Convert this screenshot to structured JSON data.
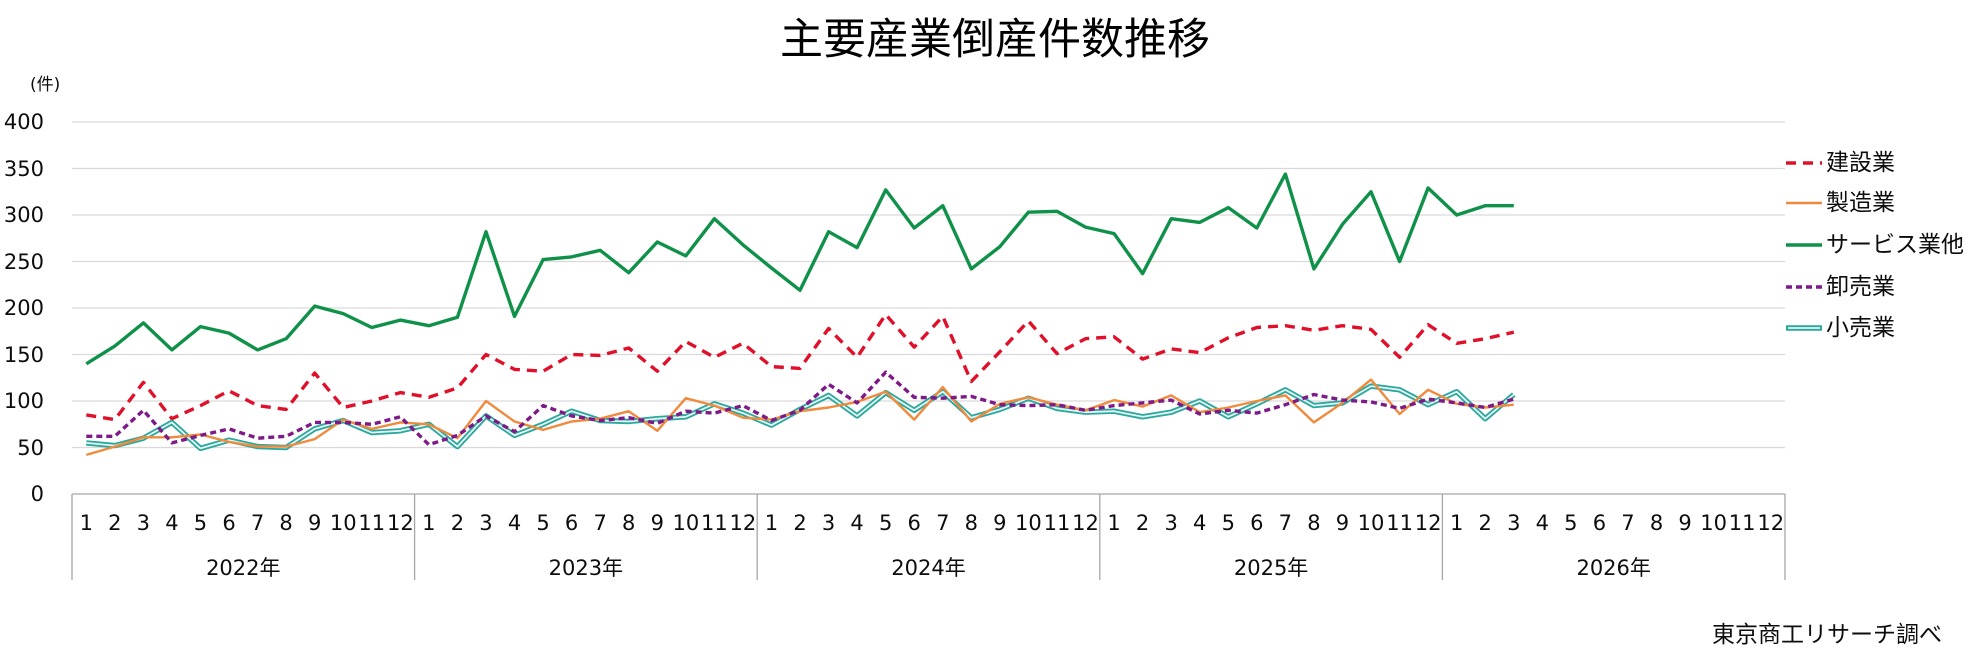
{
  "chart_data": {
    "type": "line",
    "title": "主要産業倒産件数推移",
    "xlabel": "",
    "ylabel": "(件)",
    "ylim": [
      0,
      400
    ],
    "yticks": [
      400,
      350,
      300,
      250,
      200,
      150,
      100,
      50,
      0
    ],
    "grid": true,
    "legend_position": "right",
    "source": "東京商工リサーチ調べ",
    "x_axis": {
      "years": [
        "2022年",
        "2023年",
        "2024年",
        "2025年",
        "2026年"
      ],
      "months": [
        "1",
        "2",
        "3",
        "4",
        "5",
        "6",
        "7",
        "8",
        "9",
        "10",
        "11",
        "12"
      ]
    },
    "categories": [
      "2022年1月",
      "2022年2月",
      "2022年3月",
      "2022年4月",
      "2022年5月",
      "2022年6月",
      "2022年7月",
      "2022年8月",
      "2022年9月",
      "2022年10月",
      "2022年11月",
      "2022年12月",
      "2023年1月",
      "2023年2月",
      "2023年3月",
      "2023年4月",
      "2023年5月",
      "2023年6月",
      "2023年7月",
      "2023年8月",
      "2023年9月",
      "2023年10月",
      "2023年11月",
      "2023年12月",
      "2024年1月",
      "2024年2月",
      "2024年3月",
      "2024年4月",
      "2024年5月",
      "2024年6月",
      "2024年7月",
      "2024年8月",
      "2024年9月",
      "2024年10月",
      "2024年11月",
      "2024年12月",
      "2025年1月",
      "2025年2月",
      "2025年3月",
      "2025年4月",
      "2025年5月",
      "2025年6月",
      "2025年7月",
      "2025年8月",
      "2025年9月",
      "2025年10月",
      "2025年11月",
      "2025年12月",
      "2026年1月",
      "2026年2月",
      "2026年3月",
      "2026年4月",
      "2026年5月",
      "2026年6月",
      "2026年7月",
      "2026年8月",
      "2026年9月",
      "2026年10月",
      "2026年11月",
      "2026年12月"
    ],
    "series": [
      {
        "name": "建設業",
        "color": "#e0102a",
        "line_style": "dash",
        "values": [
          85,
          80,
          120,
          81,
          95,
          111,
          95,
          91,
          130,
          93,
          100,
          109,
          104,
          114,
          150,
          134,
          132,
          150,
          149,
          157,
          132,
          164,
          147,
          162,
          137,
          135,
          178,
          147,
          193,
          158,
          191,
          121,
          153,
          186,
          151,
          167,
          169,
          145,
          156,
          152,
          168,
          179,
          181,
          176,
          181,
          177,
          147,
          182,
          162,
          167,
          174,
          null,
          null,
          null,
          null,
          null,
          null,
          null,
          null,
          null
        ]
      },
      {
        "name": "製造業",
        "color": "#f08a3c",
        "line_style": "solid-thin",
        "values": [
          42,
          51,
          61,
          61,
          64,
          56,
          51,
          51,
          59,
          80,
          70,
          77,
          75,
          60,
          100,
          78,
          69,
          78,
          81,
          89,
          68,
          103,
          95,
          82,
          80,
          89,
          93,
          99,
          110,
          80,
          115,
          78,
          97,
          104,
          96,
          90,
          101,
          94,
          106,
          88,
          93,
          100,
          106,
          77,
          98,
          123,
          86,
          112,
          97,
          93,
          96,
          null,
          null,
          null,
          null,
          null,
          null,
          null,
          null,
          null
        ]
      },
      {
        "name": "サービス業他",
        "color": "#10914a",
        "line_style": "solid",
        "values": [
          140,
          159,
          184,
          155,
          180,
          173,
          155,
          167,
          202,
          194,
          179,
          187,
          181,
          190,
          282,
          191,
          252,
          255,
          262,
          238,
          271,
          256,
          296,
          268,
          243,
          219,
          282,
          265,
          327,
          286,
          310,
          242,
          266,
          303,
          304,
          287,
          280,
          237,
          296,
          292,
          308,
          286,
          344,
          242,
          290,
          325,
          250,
          329,
          300,
          310,
          310,
          null,
          null,
          null,
          null,
          null,
          null,
          null,
          null,
          null
        ]
      },
      {
        "name": "卸売業",
        "color": "#7d1a87",
        "line_style": "short-dash",
        "values": [
          62,
          62,
          90,
          55,
          63,
          70,
          60,
          62,
          77,
          77,
          75,
          83,
          53,
          63,
          84,
          67,
          95,
          84,
          79,
          82,
          76,
          89,
          87,
          95,
          79,
          90,
          118,
          98,
          131,
          104,
          103,
          105,
          96,
          95,
          96,
          90,
          95,
          98,
          101,
          86,
          90,
          87,
          96,
          107,
          101,
          99,
          92,
          102,
          98,
          93,
          102,
          null,
          null,
          null,
          null,
          null,
          null,
          null,
          null,
          null
        ]
      },
      {
        "name": "小売業",
        "color": "#2ba79d",
        "line_style": "double",
        "values": [
          55,
          52,
          60,
          77,
          49,
          58,
          51,
          50,
          70,
          79,
          66,
          68,
          75,
          51,
          84,
          63,
          75,
          89,
          79,
          78,
          81,
          83,
          97,
          87,
          74,
          91,
          106,
          84,
          109,
          90,
          110,
          82,
          91,
          103,
          92,
          88,
          89,
          83,
          88,
          100,
          83,
          97,
          112,
          95,
          98,
          116,
          112,
          96,
          110,
          81,
          107,
          null,
          null,
          null,
          null,
          null,
          null,
          null,
          null,
          null
        ]
      }
    ]
  }
}
